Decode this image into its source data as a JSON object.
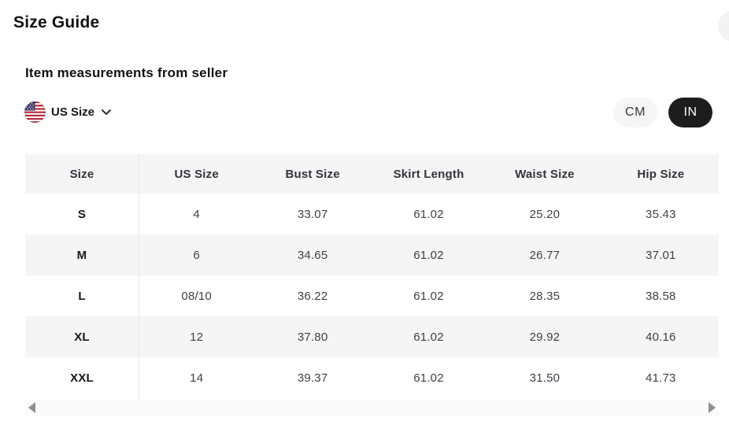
{
  "page": {
    "title": "Size Guide",
    "subtitle": "Item measurements from seller"
  },
  "size_selector": {
    "label": "US Size",
    "flag_icon": "us-flag-icon",
    "chevron_icon": "chevron-down-icon"
  },
  "unit_toggle": {
    "options": [
      {
        "label": "CM",
        "selected": false
      },
      {
        "label": "IN",
        "selected": true
      }
    ]
  },
  "table": {
    "columns": [
      "Size",
      "US Size",
      "Bust Size",
      "Skirt Length",
      "Waist Size",
      "Hip Size"
    ],
    "rows": [
      [
        "S",
        "4",
        "33.07",
        "61.02",
        "25.20",
        "35.43"
      ],
      [
        "M",
        "6",
        "34.65",
        "61.02",
        "26.77",
        "37.01"
      ],
      [
        "L",
        "08/10",
        "36.22",
        "61.02",
        "28.35",
        "38.58"
      ],
      [
        "XL",
        "12",
        "37.80",
        "61.02",
        "29.92",
        "40.16"
      ],
      [
        "XXL",
        "14",
        "39.37",
        "61.02",
        "31.50",
        "41.73"
      ]
    ]
  },
  "scrollbar": {
    "left_arrow": "scroll-left-arrow-icon",
    "right_arrow": "scroll-right-arrow-icon"
  },
  "colors": {
    "active_pill_bg": "#1d1d1d",
    "active_pill_text": "#ffffff",
    "inactive_pill_bg": "#f6f6f6",
    "row_stripe": "#f5f5f6",
    "divider": "#e7e7e7",
    "scroll_track": "#fafafa",
    "arrow": "#8f8f8f",
    "text_primary": "#121212",
    "text_cell": "#3f4049",
    "flag_red": "#b22234",
    "flag_blue": "#3c3b6e"
  }
}
